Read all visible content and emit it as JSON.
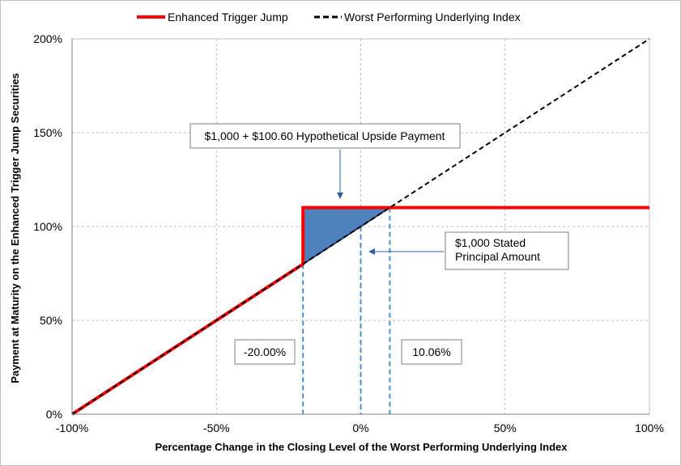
{
  "chart_data": {
    "type": "line",
    "xlabel": "Percentage Change in the Closing Level of the Worst Performing Underlying Index",
    "ylabel": "Payment at Maturity on the Enhanced Trigger Jump Securities",
    "xlim": [
      -100,
      100
    ],
    "ylim": [
      0,
      200
    ],
    "x_ticks": [
      -100,
      -50,
      0,
      50,
      100
    ],
    "x_tick_labels": [
      "-100%",
      "-50%",
      "0%",
      "50%",
      "100%"
    ],
    "y_ticks": [
      0,
      50,
      100,
      150,
      200
    ],
    "y_tick_labels": [
      "0%",
      "50%",
      "100%",
      "150%",
      "200%"
    ],
    "grid": true,
    "legend_position": "top",
    "series": [
      {
        "name": "Enhanced Trigger Jump",
        "color": "#ff0000",
        "style": "solid",
        "x": [
          -100,
          -20,
          -20,
          100
        ],
        "y": [
          0,
          80,
          110.06,
          110.06
        ]
      },
      {
        "name": "Worst Performing Underlying Index",
        "color": "#000000",
        "style": "dashed",
        "x": [
          -100,
          100
        ],
        "y": [
          0,
          200
        ]
      }
    ],
    "shaded_region": {
      "color": "#4f81bd",
      "x": [
        -20,
        -20,
        10.06
      ],
      "y": [
        80,
        110.06,
        110.06
      ]
    },
    "reference_lines": [
      {
        "x": -20,
        "y_top": 80
      },
      {
        "x": 0,
        "y_top": 100
      },
      {
        "x": 10.06,
        "y_top": 110.06
      }
    ],
    "annotations": {
      "upside_payment": "$1,000 + $100.60 Hypothetical Upside Payment",
      "stated_principal_line1": "$1,000 Stated",
      "stated_principal_line2": "Principal Amount",
      "trigger_level": "-20.00%",
      "upside_level": "10.06%"
    }
  }
}
